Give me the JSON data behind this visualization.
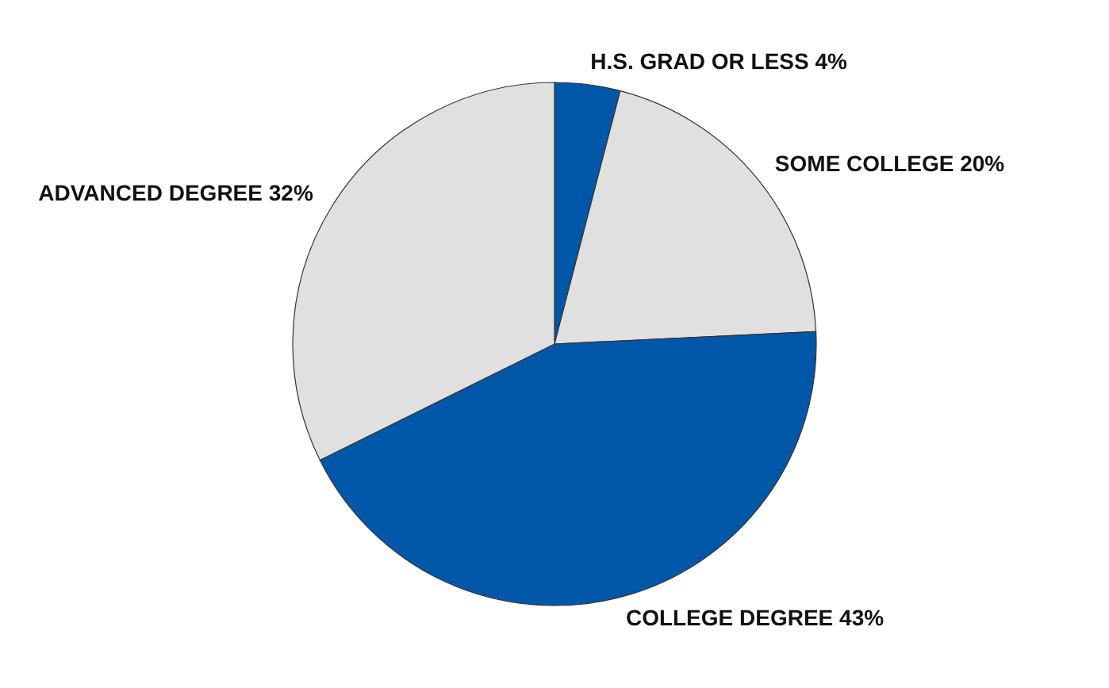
{
  "chart_data": {
    "type": "pie",
    "categories": [
      "H.S. GRAD OR LESS",
      "SOME COLLEGE",
      "COLLEGE DEGREE",
      "ADVANCED DEGREE"
    ],
    "values": [
      4,
      20,
      43,
      32
    ],
    "value_labels": [
      "4%",
      "20%",
      "43%",
      "32%"
    ],
    "colors": [
      "#0057a8",
      "#e0e0e0",
      "#0057a8",
      "#e0e0e0"
    ],
    "legend": false
  }
}
